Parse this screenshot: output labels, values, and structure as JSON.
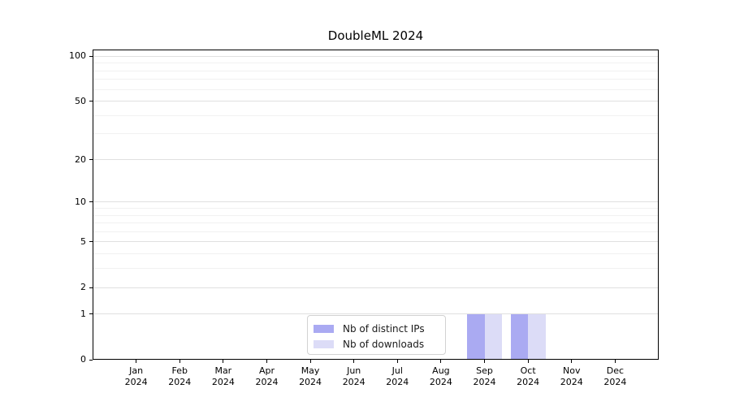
{
  "chart_data": {
    "type": "bar",
    "title": "DoubleML 2024",
    "categories": [
      "Jan 2024",
      "Feb 2024",
      "Mar 2024",
      "Apr 2024",
      "May 2024",
      "Jun 2024",
      "Jul 2024",
      "Aug 2024",
      "Sep 2024",
      "Oct 2024",
      "Nov 2024",
      "Dec 2024"
    ],
    "series": [
      {
        "name": "Nb of distinct IPs",
        "color": "#aaaaf2",
        "values": [
          0,
          0,
          0,
          0,
          0,
          0,
          0,
          0,
          1,
          1,
          0,
          0
        ]
      },
      {
        "name": "Nb of downloads",
        "color": "#dcdcf7",
        "values": [
          0,
          0,
          0,
          0,
          0,
          0,
          0,
          0,
          1,
          1,
          0,
          0
        ]
      }
    ],
    "xlabel": "",
    "ylabel": "",
    "yscale": "log1p",
    "yticks": [
      0,
      1,
      2,
      5,
      10,
      20,
      50,
      100
    ],
    "minor_yticks": [
      3,
      4,
      6,
      7,
      8,
      9,
      30,
      40,
      60,
      70,
      80,
      90
    ],
    "ylim": [
      0,
      111
    ],
    "grid": "horizontal",
    "legend_position": "lower center-left",
    "colors": {
      "grid_major": "#e0e0e0",
      "grid_minor": "#f1f1f1",
      "spine": "#000000",
      "tick_text": "#000000"
    }
  }
}
